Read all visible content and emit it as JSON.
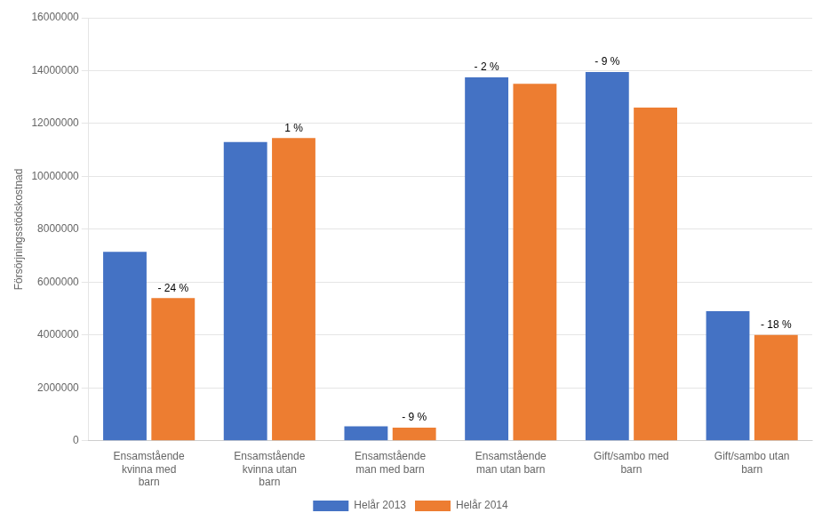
{
  "chart_data": {
    "type": "bar",
    "categories": [
      "Ensamstående\nkvinna med\nbarn",
      "Ensamstående\nkvinna utan\nbarn",
      "Ensamstående\nman med barn",
      "Ensamstående\nman utan barn",
      "Gift/sambo med\nbarn",
      "Gift/sambo utan\nbarn"
    ],
    "series": [
      {
        "name": "Helår 2013",
        "color": "#4472C4",
        "values": [
          7150000,
          11300000,
          550000,
          13750000,
          13950000,
          4900000
        ]
      },
      {
        "name": "Helår 2014",
        "color": "#ED7D31",
        "values": [
          5400000,
          11450000,
          500000,
          13500000,
          12600000,
          4000000
        ]
      }
    ],
    "ylabel": "Försörjningsstödskostnad",
    "ylim": [
      0,
      16000000
    ],
    "yticks": [
      0,
      2000000,
      4000000,
      6000000,
      8000000,
      10000000,
      12000000,
      14000000,
      16000000
    ],
    "grid": true,
    "legend": "bottom",
    "annotations": [
      {
        "text": "- 24 %",
        "category": "Ensamstående\nkvinna med\nbarn",
        "series": "Helår 2014"
      },
      {
        "text": "1 %",
        "category": "Ensamstående\nkvinna utan\nbarn",
        "series": "Helår 2014"
      },
      {
        "text": "- 9 %",
        "category": "Ensamstående\nman med barn",
        "series": "Helår 2014"
      },
      {
        "text": "- 2 %",
        "category": "Ensamstående\nman utan barn",
        "series": "Helår 2013"
      },
      {
        "text": "- 9 %",
        "category": "Gift/sambo med\nbarn",
        "series": "Helår 2013"
      },
      {
        "text": "- 18 %",
        "category": "Gift/sambo utan\nbarn",
        "series": "Helår 2014"
      }
    ]
  }
}
